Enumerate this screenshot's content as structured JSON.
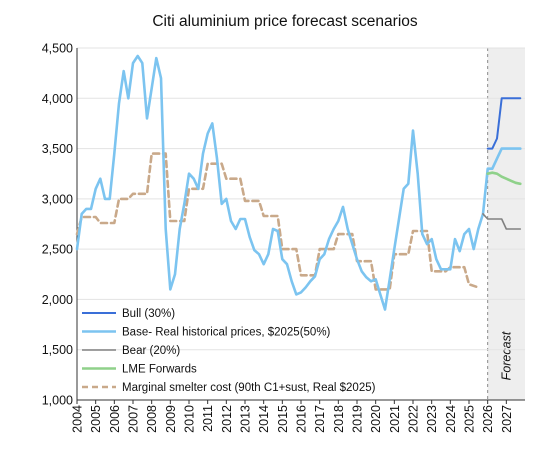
{
  "chart_data": {
    "type": "line",
    "title": "Citi aluminium price forecast scenarios",
    "xlabel": "",
    "ylabel": "",
    "ylim": [
      1000,
      4500
    ],
    "y_ticks": [
      "1,000",
      "1,500",
      "2,000",
      "2,500",
      "3,000",
      "3,500",
      "4,000",
      "4,500"
    ],
    "y_tick_values": [
      1000,
      1500,
      2000,
      2500,
      3000,
      3500,
      4000,
      4500
    ],
    "x_ticks": [
      "2004",
      "2005",
      "2006",
      "2007",
      "2008",
      "2009",
      "2010",
      "2011",
      "2012",
      "2013",
      "2014",
      "2015",
      "2016",
      "2017",
      "2018",
      "2019",
      "2020",
      "2021",
      "2022",
      "2023",
      "2024",
      "2025",
      "2026",
      "2027"
    ],
    "x_range": [
      2004,
      2028
    ],
    "forecast_label": "Forecast",
    "forecast_start": 2026,
    "grid": "horizontal",
    "legend_position": "bottom-left",
    "colors": {
      "bull": "#3a6fd8",
      "base": "#7cc4f0",
      "bear": "#808080",
      "lme": "#8fd18a",
      "marginal": "#c9a98a",
      "forecast_shade": "#eeeeee"
    },
    "series": [
      {
        "key": "bull",
        "name": "Bull (30%)",
        "x": [
          2026.0,
          2026.25,
          2026.5,
          2026.75,
          2027.0,
          2027.25,
          2027.5,
          2027.75
        ],
        "y": [
          3500,
          3500,
          3600,
          4000,
          4000,
          4000,
          4000,
          4000
        ]
      },
      {
        "key": "base",
        "name": "Base- Real historical prices, $2025(50%)",
        "x": [
          2004.0,
          2004.25,
          2004.5,
          2004.75,
          2005.0,
          2005.25,
          2005.5,
          2005.75,
          2006.0,
          2006.25,
          2006.5,
          2006.75,
          2007.0,
          2007.25,
          2007.5,
          2007.75,
          2008.0,
          2008.25,
          2008.5,
          2008.75,
          2009.0,
          2009.25,
          2009.5,
          2009.75,
          2010.0,
          2010.25,
          2010.5,
          2010.75,
          2011.0,
          2011.25,
          2011.5,
          2011.75,
          2012.0,
          2012.25,
          2012.5,
          2012.75,
          2013.0,
          2013.25,
          2013.5,
          2013.75,
          2014.0,
          2014.25,
          2014.5,
          2014.75,
          2015.0,
          2015.25,
          2015.5,
          2015.75,
          2016.0,
          2016.25,
          2016.5,
          2016.75,
          2017.0,
          2017.25,
          2017.5,
          2017.75,
          2018.0,
          2018.25,
          2018.5,
          2018.75,
          2019.0,
          2019.25,
          2019.5,
          2019.75,
          2020.0,
          2020.25,
          2020.5,
          2020.75,
          2021.0,
          2021.25,
          2021.5,
          2021.75,
          2022.0,
          2022.25,
          2022.5,
          2022.75,
          2023.0,
          2023.25,
          2023.5,
          2023.75,
          2024.0,
          2024.25,
          2024.5,
          2024.75,
          2025.0,
          2025.25,
          2025.5,
          2025.75,
          2026.0,
          2026.25,
          2026.5,
          2026.75,
          2027.0,
          2027.25,
          2027.5,
          2027.75
        ],
        "y": [
          2500,
          2850,
          2900,
          2900,
          3100,
          3200,
          3000,
          3000,
          3450,
          3950,
          4270,
          4000,
          4350,
          4420,
          4350,
          3800,
          4100,
          4400,
          4200,
          2700,
          2100,
          2250,
          2700,
          2950,
          3250,
          3200,
          3100,
          3450,
          3650,
          3750,
          3400,
          2950,
          3000,
          2780,
          2700,
          2800,
          2800,
          2620,
          2490,
          2450,
          2350,
          2450,
          2700,
          2680,
          2400,
          2350,
          2180,
          2050,
          2070,
          2120,
          2180,
          2230,
          2400,
          2450,
          2600,
          2700,
          2780,
          2920,
          2700,
          2550,
          2400,
          2280,
          2220,
          2180,
          2200,
          2050,
          1900,
          2200,
          2500,
          2800,
          3100,
          3150,
          3680,
          3250,
          2650,
          2550,
          2600,
          2400,
          2300,
          2300,
          2300,
          2600,
          2480,
          2650,
          2700,
          2500,
          2700,
          2850,
          3300,
          3300,
          3400,
          3500,
          3500,
          3500,
          3500,
          3500
        ]
      },
      {
        "key": "bear",
        "name": "Bear (20%)",
        "x": [
          2025.75,
          2026.0,
          2026.25,
          2026.5,
          2026.75,
          2027.0,
          2027.25,
          2027.5,
          2027.75
        ],
        "y": [
          2850,
          2800,
          2800,
          2800,
          2800,
          2700,
          2700,
          2700,
          2700
        ]
      },
      {
        "key": "lme",
        "name": "LME Forwards",
        "x": [
          2026.0,
          2026.25,
          2026.5,
          2026.75,
          2027.0,
          2027.25,
          2027.5,
          2027.75
        ],
        "y": [
          3250,
          3260,
          3250,
          3220,
          3200,
          3180,
          3160,
          3150
        ]
      },
      {
        "key": "marginal",
        "name": "Marginal smelter cost (90th C1+sust, Real $2025)",
        "x": [
          2004.0,
          2004.25,
          2005.0,
          2005.25,
          2006.0,
          2006.25,
          2006.75,
          2007.0,
          2007.75,
          2008.0,
          2008.75,
          2009.0,
          2009.75,
          2010.0,
          2010.75,
          2011.0,
          2011.75,
          2012.0,
          2012.75,
          2013.0,
          2013.75,
          2014.0,
          2014.75,
          2015.0,
          2015.75,
          2016.0,
          2016.75,
          2017.0,
          2017.75,
          2018.0,
          2018.75,
          2019.0,
          2019.75,
          2020.0,
          2020.75,
          2021.0,
          2021.75,
          2022.0,
          2022.75,
          2023.0,
          2023.75,
          2024.0,
          2024.75,
          2025.0,
          2025.5
        ],
        "y": [
          2650,
          2820,
          2820,
          2760,
          2760,
          3000,
          3000,
          3050,
          3050,
          3450,
          3450,
          2780,
          2780,
          3100,
          3100,
          3350,
          3350,
          3200,
          3200,
          2980,
          2980,
          2830,
          2830,
          2500,
          2500,
          2240,
          2240,
          2500,
          2500,
          2650,
          2650,
          2380,
          2380,
          2100,
          2100,
          2450,
          2450,
          2680,
          2680,
          2280,
          2280,
          2320,
          2320,
          2150,
          2120
        ]
      }
    ]
  }
}
